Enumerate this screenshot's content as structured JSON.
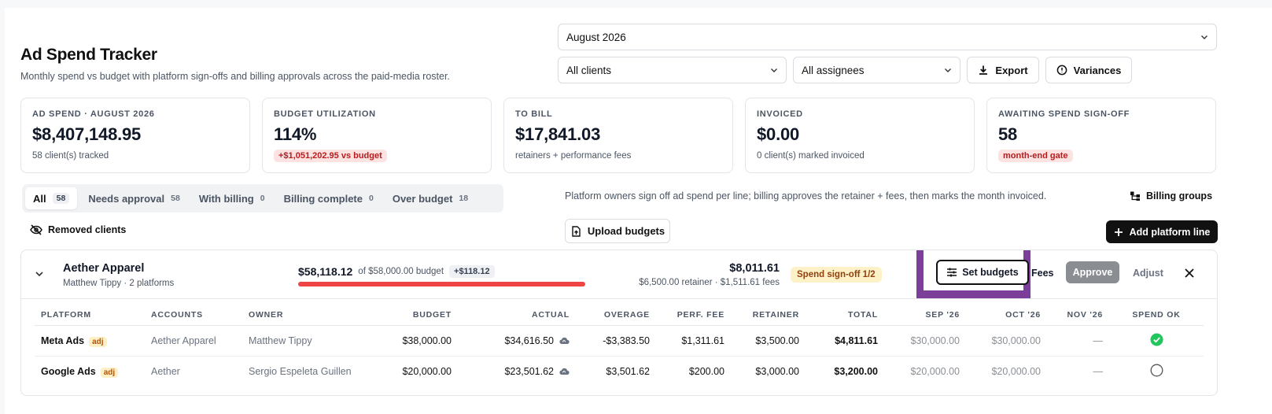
{
  "header": {
    "title": "Ad Spend Tracker",
    "subtitle": "Monthly spend vs budget with platform sign-offs and billing approvals across the paid-media roster."
  },
  "filters": {
    "month": "August 2026",
    "clients": "All clients",
    "assignees": "All assignees",
    "export_label": "Export",
    "variances_label": "Variances"
  },
  "stats": [
    {
      "label": "AD SPEND · AUGUST 2026",
      "value": "$8,407,148.95",
      "sub": "58 client(s) tracked"
    },
    {
      "label": "BUDGET UTILIZATION",
      "value": "114%",
      "pill": "+$1,051,202.95 vs budget"
    },
    {
      "label": "TO BILL",
      "value": "$17,841.03",
      "sub": "retainers + performance fees"
    },
    {
      "label": "INVOICED",
      "value": "$0.00",
      "sub": "0 client(s) marked invoiced"
    },
    {
      "label": "AWAITING SPEND SIGN-OFF",
      "value": "58",
      "pill": "month-end gate"
    }
  ],
  "tabs": [
    {
      "label": "All",
      "count": "58"
    },
    {
      "label": "Needs approval",
      "count": "58"
    },
    {
      "label": "With billing",
      "count": "0"
    },
    {
      "label": "Billing complete",
      "count": "0"
    },
    {
      "label": "Over budget",
      "count": "18"
    }
  ],
  "info_text": "Platform owners sign off ad spend per line; billing approves the retainer + fees, then marks the month invoiced.",
  "billing_groups_label": "Billing groups",
  "removed_clients_label": "Removed clients",
  "upload_budgets_label": "Upload budgets",
  "add_platform_label": "Add platform line",
  "client": {
    "name": "Aether Apparel",
    "meta": "Matthew Tippy · 2 platforms",
    "spent": "$58,118.12",
    "of_budget": "of $58,000.00 budget",
    "over": "+$118.12",
    "spend_fraction": 1.002,
    "total": "$8,011.61",
    "total_sub": "$6,500.00 retainer · $1,511.61 fees",
    "signoff": "Spend sign-off 1/2",
    "set_budgets_label": "Set budgets",
    "fees_label": "Fees",
    "approve_label": "Approve",
    "adjust_label": "Adjust"
  },
  "table": {
    "columns": [
      "PLATFORM",
      "ACCOUNTS",
      "OWNER",
      "BUDGET",
      "ACTUAL",
      "OVERAGE",
      "PERF. FEE",
      "RETAINER",
      "TOTAL",
      "SEP '26",
      "OCT '26",
      "NOV '26",
      "SPEND OK"
    ],
    "rows": [
      {
        "platform": "Meta Ads",
        "tag": "adj",
        "accounts": "Aether Apparel",
        "owner": "Matthew Tippy",
        "budget": "$38,000.00",
        "actual": "$34,616.50",
        "overage": "-$3,383.50",
        "perf_fee": "$1,311.61",
        "retainer": "$3,500.00",
        "total": "$4,811.61",
        "sep": "$30,000.00",
        "oct": "$30,000.00",
        "nov": "—",
        "spend_ok": true
      },
      {
        "platform": "Google Ads",
        "tag": "adj",
        "accounts": "Aether",
        "owner": "Sergio Espeleta Guillen",
        "budget": "$20,000.00",
        "actual": "$23,501.62",
        "overage": "$3,501.62",
        "perf_fee": "$200.00",
        "retainer": "$3,000.00",
        "total": "$3,200.00",
        "sep": "$20,000.00",
        "oct": "$20,000.00",
        "nov": "—",
        "spend_ok": false
      }
    ]
  },
  "colors": {
    "accent_highlight": "#7b3f9a",
    "over_bar": "#ef4444",
    "ok_green": "#22c55e"
  }
}
